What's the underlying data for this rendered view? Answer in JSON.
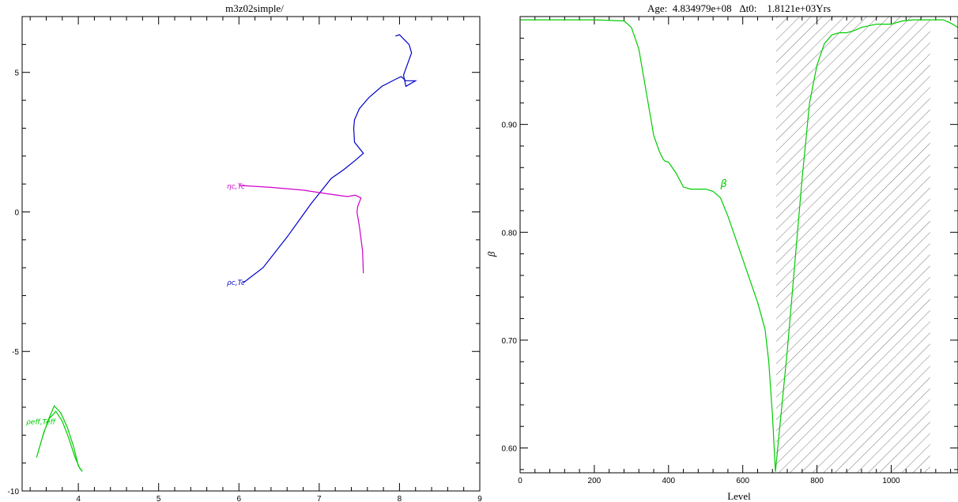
{
  "chart_data": [
    {
      "type": "line",
      "title": "m3z02simple/",
      "xlabel": "",
      "ylabel": "",
      "xlim": [
        3.3,
        9.0
      ],
      "ylim": [
        -10.0,
        7.0
      ],
      "x_ticks": [
        4,
        5,
        6,
        7,
        8,
        9
      ],
      "y_ticks": [
        -10,
        -5,
        0,
        5
      ],
      "series": [
        {
          "name": "ρc,Tc",
          "color": "#0000cc",
          "label_at": [
            5.85,
            -2.5
          ],
          "x": [
            6.05,
            6.3,
            6.6,
            6.9,
            7.15,
            7.3,
            7.45,
            7.55,
            7.44,
            7.43,
            7.44,
            7.5,
            7.62,
            7.78,
            7.95,
            8.02,
            8.08,
            8.2,
            8.08,
            8.05,
            8.1,
            8.15,
            8.12,
            8.05,
            8.0,
            7.95
          ],
          "y": [
            -2.55,
            -2.0,
            -0.9,
            0.3,
            1.2,
            1.5,
            1.85,
            2.1,
            2.5,
            3.0,
            3.3,
            3.7,
            4.1,
            4.5,
            4.75,
            4.85,
            4.7,
            4.7,
            4.5,
            4.9,
            5.3,
            5.7,
            6.0,
            6.2,
            6.35,
            6.3
          ]
        },
        {
          "name": "ηc,Tc",
          "color": "#cc00cc",
          "label_at": [
            5.85,
            0.95
          ],
          "x": [
            6.0,
            6.4,
            6.8,
            7.1,
            7.35,
            7.45,
            7.52,
            7.48,
            7.47,
            7.5,
            7.54,
            7.55
          ],
          "y": [
            0.95,
            0.88,
            0.78,
            0.65,
            0.55,
            0.6,
            0.5,
            0.2,
            0.0,
            -0.5,
            -1.4,
            -2.2
          ]
        },
        {
          "name": "ρeff,Teff",
          "color": "#00cc00",
          "label_at": [
            3.35,
            -7.5
          ],
          "x": [
            3.48,
            3.55,
            3.62,
            3.7,
            3.78,
            3.86,
            3.94,
            4.0,
            4.05,
            4.02,
            3.96,
            3.88,
            3.8,
            3.72,
            3.64,
            3.57,
            3.5
          ],
          "y": [
            -8.8,
            -8.1,
            -7.5,
            -6.95,
            -7.2,
            -7.7,
            -8.4,
            -9.1,
            -9.3,
            -9.2,
            -8.8,
            -8.1,
            -7.5,
            -7.15,
            -7.4,
            -7.9,
            -8.6
          ]
        }
      ]
    },
    {
      "type": "line",
      "title": "Age:  4.834979e+08   Δt0:    1.8121e+03Yrs",
      "xlabel": "Level",
      "ylabel": "β",
      "xlim": [
        0,
        1180
      ],
      "ylim": [
        0.577,
        1.0
      ],
      "x_ticks": [
        0,
        200,
        400,
        600,
        800,
        1000
      ],
      "y_ticks": [
        0.6,
        0.7,
        0.8,
        0.9
      ],
      "y_tick_labels": [
        "0.60",
        "0.70",
        "0.80",
        "0.90"
      ],
      "shaded_region": [
        690,
        1105
      ],
      "series": [
        {
          "name": "β",
          "color": "#00cc00",
          "label_at": [
            540,
            0.845
          ],
          "x": [
            0,
            200,
            280,
            300,
            320,
            340,
            360,
            375,
            385,
            390,
            400,
            420,
            440,
            460,
            480,
            500,
            520,
            540,
            560,
            580,
            600,
            620,
            640,
            660,
            670,
            680,
            688,
            700,
            720,
            740,
            760,
            780,
            800,
            820,
            840,
            860,
            880,
            900,
            920,
            960,
            1000,
            1030,
            1060,
            1100,
            1140,
            1160,
            1180
          ],
          "y": [
            0.997,
            0.997,
            0.996,
            0.99,
            0.97,
            0.93,
            0.89,
            0.875,
            0.868,
            0.866,
            0.865,
            0.855,
            0.842,
            0.84,
            0.84,
            0.84,
            0.838,
            0.832,
            0.815,
            0.795,
            0.775,
            0.755,
            0.735,
            0.71,
            0.68,
            0.63,
            0.578,
            0.62,
            0.69,
            0.77,
            0.85,
            0.92,
            0.955,
            0.975,
            0.983,
            0.985,
            0.985,
            0.987,
            0.99,
            0.993,
            0.993,
            0.996,
            0.997,
            0.997,
            0.997,
            0.994,
            0.99
          ]
        }
      ]
    }
  ]
}
